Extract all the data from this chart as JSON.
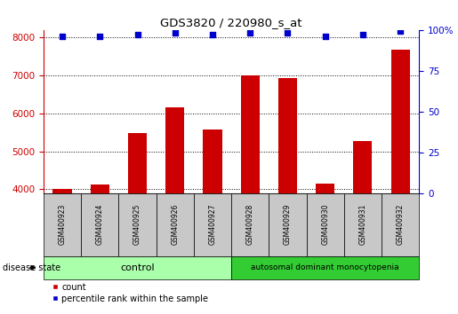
{
  "title": "GDS3820 / 220980_s_at",
  "samples": [
    "GSM400923",
    "GSM400924",
    "GSM400925",
    "GSM400926",
    "GSM400927",
    "GSM400928",
    "GSM400929",
    "GSM400930",
    "GSM400931",
    "GSM400932"
  ],
  "counts": [
    4020,
    4130,
    5480,
    6150,
    5580,
    7000,
    6930,
    4150,
    5270,
    7680
  ],
  "percentiles": [
    96,
    96,
    97,
    98,
    97,
    98,
    98,
    96,
    97,
    99
  ],
  "ylim_left": [
    3900,
    8200
  ],
  "ylim_right": [
    0,
    100
  ],
  "yticks_left": [
    4000,
    5000,
    6000,
    7000,
    8000
  ],
  "yticks_right": [
    0,
    25,
    50,
    75,
    100
  ],
  "bar_color": "#CC0000",
  "dot_color": "#0000CC",
  "left_axis_color": "#CC0000",
  "right_axis_color": "#0000CC",
  "sample_bg_color": "#C8C8C8",
  "group_bg_light": "#AAFFAA",
  "group_bg_dark": "#33CC33",
  "ctrl_label": "control",
  "adm_label": "autosomal dominant monocytopenia",
  "disease_state_label": "disease state",
  "legend_count_label": "count",
  "legend_pct_label": "percentile rank within the sample",
  "n_control": 5,
  "n_adm": 5
}
